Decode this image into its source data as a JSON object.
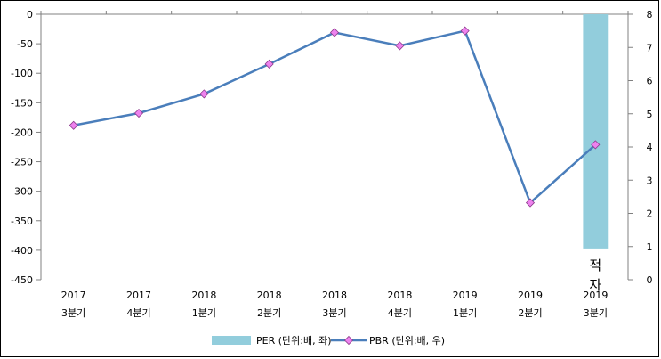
{
  "chart_data": {
    "type": "bar",
    "categories": [
      [
        "2017",
        "3분기"
      ],
      [
        "2017",
        "4분기"
      ],
      [
        "2018",
        "1분기"
      ],
      [
        "2018",
        "2분기"
      ],
      [
        "2018",
        "3분기"
      ],
      [
        "2018",
        "4분기"
      ],
      [
        "2019",
        "1분기"
      ],
      [
        "2019",
        "2분기"
      ],
      [
        "2019",
        "3분기"
      ]
    ],
    "series": [
      {
        "name": "PER (단위:배, 좌)",
        "type": "bar",
        "axis": "left",
        "color": "#92CDDC",
        "values": [
          null,
          null,
          null,
          null,
          null,
          null,
          null,
          null,
          -397
        ]
      },
      {
        "name": "PBR (단위:배, 우)",
        "type": "line",
        "axis": "right",
        "color": "#4A7EBB",
        "marker_color": "#EE82EE",
        "values": [
          4.65,
          5.02,
          5.6,
          6.5,
          7.45,
          7.05,
          7.5,
          2.32,
          4.07
        ]
      }
    ],
    "y_left": {
      "lim": [
        -450,
        0
      ],
      "ticks": [
        0,
        -50,
        -100,
        -150,
        -200,
        -250,
        -300,
        -350,
        -400,
        -450
      ]
    },
    "y_right": {
      "lim": [
        0,
        8
      ],
      "ticks": [
        8,
        7,
        6,
        5,
        4,
        3,
        2,
        1,
        0
      ]
    },
    "annotations": [
      {
        "text": "적자",
        "category_index": 8
      }
    ],
    "legend_position": "bottom",
    "grid": false
  }
}
